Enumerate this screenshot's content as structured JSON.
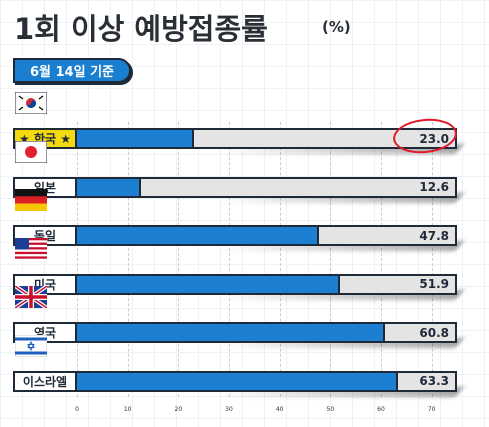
{
  "title": "1회 이상 예방접종률",
  "unit": "(%)",
  "badge": "6월 14일 기준",
  "colors": {
    "bar": "#1d7fd1",
    "track": "#e4e4e4",
    "highlight": "#f5d90f",
    "annotation": "#e11b2b"
  },
  "chart_data": {
    "type": "bar",
    "orientation": "horizontal",
    "categories": [
      "★ 한국 ★",
      "일본",
      "독일",
      "미국",
      "영국",
      "이스라엘"
    ],
    "values": [
      23.0,
      12.6,
      47.8,
      51.9,
      60.8,
      63.3
    ],
    "value_labels": [
      "23.0",
      "12.6",
      "47.8",
      "51.9",
      "60.8",
      "63.3"
    ],
    "flags": [
      "korea-flag",
      "japan-flag",
      "germany-flag",
      "usa-flag",
      "uk-flag",
      "israel-flag"
    ],
    "xlim": [
      0,
      75
    ],
    "xticks": [
      "0",
      "10",
      "20",
      "30",
      "40",
      "50",
      "60",
      "70"
    ],
    "highlight_category": "★ 한국 ★"
  }
}
